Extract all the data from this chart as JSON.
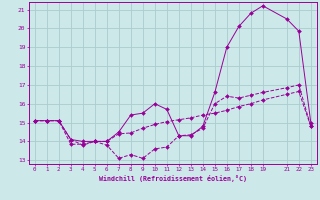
{
  "title": "",
  "xlabel": "Windchill (Refroidissement éolien,°C)",
  "bg_color": "#cce8e8",
  "grid_color": "#aacccc",
  "line_color": "#990099",
  "xlim": [
    -0.5,
    23.5
  ],
  "ylim": [
    12.8,
    21.4
  ],
  "xticks": [
    0,
    1,
    2,
    3,
    4,
    5,
    6,
    7,
    8,
    9,
    10,
    11,
    12,
    13,
    14,
    15,
    16,
    17,
    18,
    19,
    21,
    22,
    23
  ],
  "yticks": [
    13,
    14,
    15,
    16,
    17,
    18,
    19,
    20,
    21
  ],
  "line1_x": [
    0,
    1,
    2,
    3,
    4,
    5,
    6,
    7,
    8,
    9,
    10,
    11,
    12,
    13,
    14,
    15,
    16,
    17,
    18,
    19,
    21,
    22,
    23
  ],
  "line1_y": [
    15.1,
    15.1,
    15.1,
    14.1,
    13.8,
    14.0,
    13.8,
    13.1,
    13.3,
    13.1,
    13.6,
    13.7,
    14.3,
    14.35,
    14.7,
    16.0,
    16.4,
    16.3,
    16.45,
    16.6,
    16.85,
    17.0,
    14.8
  ],
  "line2_x": [
    0,
    1,
    2,
    3,
    4,
    5,
    6,
    7,
    8,
    9,
    10,
    11,
    12,
    13,
    14,
    15,
    16,
    17,
    18,
    19,
    21,
    22,
    23
  ],
  "line2_y": [
    15.1,
    15.1,
    15.1,
    14.1,
    14.0,
    14.0,
    14.0,
    14.5,
    15.4,
    15.5,
    16.0,
    15.7,
    14.3,
    14.3,
    14.8,
    16.6,
    19.0,
    20.1,
    20.8,
    21.2,
    20.5,
    19.85,
    15.0
  ],
  "line3_x": [
    0,
    1,
    2,
    3,
    4,
    5,
    6,
    7,
    8,
    9,
    10,
    11,
    12,
    13,
    14,
    15,
    16,
    17,
    18,
    19,
    21,
    22,
    23
  ],
  "line3_y": [
    15.1,
    15.1,
    15.1,
    13.85,
    13.85,
    14.0,
    14.0,
    14.4,
    14.45,
    14.7,
    14.9,
    15.05,
    15.15,
    15.25,
    15.4,
    15.5,
    15.65,
    15.85,
    16.0,
    16.2,
    16.5,
    16.65,
    14.8
  ]
}
